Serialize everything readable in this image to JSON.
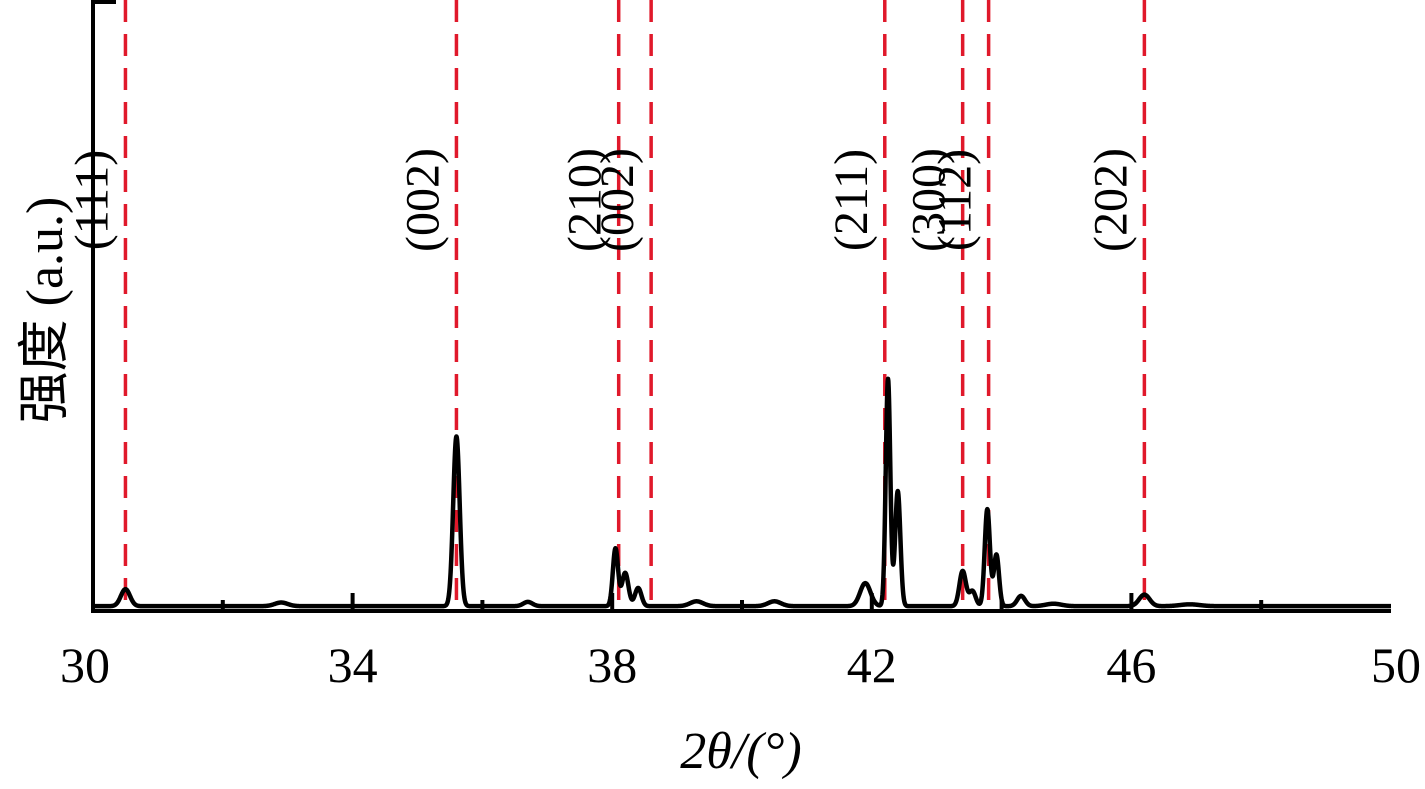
{
  "chart_data": {
    "type": "line",
    "xlabel": "2θ/(°)",
    "ylabel": "强度 (a.u.)",
    "xlim": [
      30,
      50
    ],
    "ylim": [
      0,
      100
    ],
    "x_ticks": [
      30,
      34,
      38,
      42,
      46,
      50
    ],
    "x_tick_labels": [
      "30",
      "34",
      "38",
      "42",
      "46",
      "50"
    ],
    "grid": false,
    "colors": {
      "line": "#000000",
      "reference": "#e0192b"
    },
    "reference_lines": [
      {
        "x": 30.5,
        "label": "(111)"
      },
      {
        "x": 35.6,
        "label": "(002)"
      },
      {
        "x": 38.1,
        "label": "(210)"
      },
      {
        "x": 38.6,
        "label": "(002)"
      },
      {
        "x": 42.2,
        "label": "(211)"
      },
      {
        "x": 43.4,
        "label": "(300)"
      },
      {
        "x": 43.8,
        "label": "(112)"
      },
      {
        "x": 46.2,
        "label": "(202)"
      }
    ],
    "baseline": 0.8,
    "peaks": [
      {
        "x": 30.5,
        "height": 2.8,
        "width": 0.07
      },
      {
        "x": 32.9,
        "height": 0.6,
        "width": 0.1
      },
      {
        "x": 35.6,
        "height": 28.0,
        "width": 0.05
      },
      {
        "x": 36.7,
        "height": 0.7,
        "width": 0.07
      },
      {
        "x": 38.05,
        "height": 9.5,
        "width": 0.04
      },
      {
        "x": 38.2,
        "height": 5.5,
        "width": 0.05
      },
      {
        "x": 38.4,
        "height": 3.0,
        "width": 0.05
      },
      {
        "x": 39.3,
        "height": 0.8,
        "width": 0.1
      },
      {
        "x": 40.5,
        "height": 0.8,
        "width": 0.1
      },
      {
        "x": 41.9,
        "height": 3.8,
        "width": 0.08
      },
      {
        "x": 42.25,
        "height": 37.5,
        "width": 0.035
      },
      {
        "x": 42.4,
        "height": 19.0,
        "width": 0.04
      },
      {
        "x": 43.4,
        "height": 5.8,
        "width": 0.05
      },
      {
        "x": 43.55,
        "height": 2.5,
        "width": 0.05
      },
      {
        "x": 43.78,
        "height": 16.0,
        "width": 0.04
      },
      {
        "x": 43.92,
        "height": 8.5,
        "width": 0.04
      },
      {
        "x": 44.3,
        "height": 1.7,
        "width": 0.06
      },
      {
        "x": 44.8,
        "height": 0.4,
        "width": 0.12
      },
      {
        "x": 46.2,
        "height": 1.9,
        "width": 0.08
      },
      {
        "x": 46.9,
        "height": 0.3,
        "width": 0.15
      }
    ]
  }
}
